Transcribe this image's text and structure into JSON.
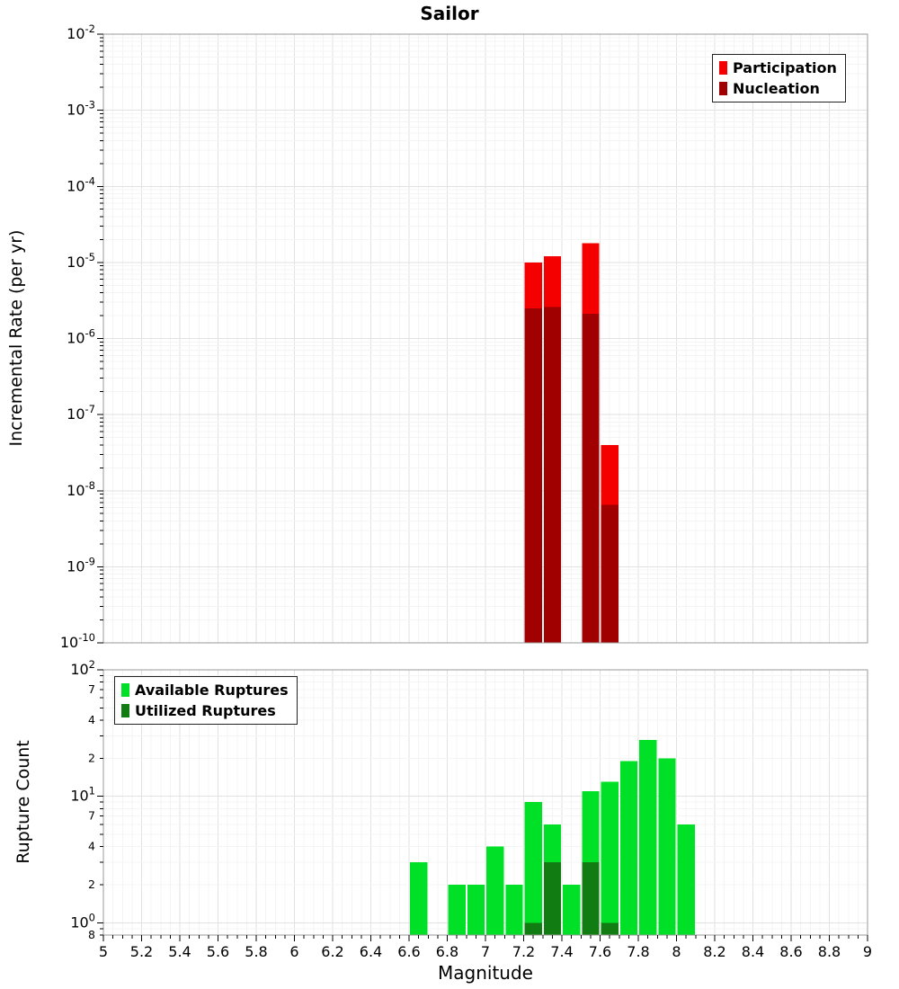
{
  "title": "Sailor",
  "xlabel": "Magnitude",
  "colors": {
    "grid_major": "#e2e2e2",
    "grid_minor": "#f4f4f4",
    "frame": "#9a9a9a",
    "tick": "#000000",
    "participation": "#f40000",
    "nucleation": "#a00000",
    "available": "#00e026",
    "utilized": "#117c11"
  },
  "legend_top": {
    "items": [
      {
        "label": "Participation",
        "color": "#f40000"
      },
      {
        "label": "Nucleation",
        "color": "#a00000"
      }
    ]
  },
  "legend_bottom": {
    "items": [
      {
        "label": "Available Ruptures",
        "color": "#00e026"
      },
      {
        "label": "Utilized Ruptures",
        "color": "#117c11"
      }
    ]
  },
  "chart_data": [
    {
      "type": "bar",
      "title": "Sailor",
      "ylabel": "Incremental Rate (per yr)",
      "xlabel": "",
      "yscale": "log",
      "ylim": [
        1e-10,
        0.01
      ],
      "xlim": [
        5,
        9
      ],
      "bin_width": 0.1,
      "grid": true,
      "legend_position": "top-right",
      "y_ticks": [
        {
          "v": 0.01,
          "l": "10^-2"
        },
        {
          "v": 0.001,
          "l": "10^-3"
        },
        {
          "v": 0.0001,
          "l": "10^-4"
        },
        {
          "v": 1e-05,
          "l": "10^-5"
        },
        {
          "v": 1e-06,
          "l": "10^-6"
        },
        {
          "v": 1e-07,
          "l": "10^-7"
        },
        {
          "v": 1e-08,
          "l": "10^-8"
        },
        {
          "v": 1e-09,
          "l": "10^-9"
        },
        {
          "v": 1e-10,
          "l": "10^-10"
        }
      ],
      "series": [
        {
          "name": "Participation",
          "color": "#f40000",
          "x": [
            7.25,
            7.35,
            7.55,
            7.65
          ],
          "values": [
            1e-05,
            1.2e-05,
            1.8e-05,
            4e-08
          ]
        },
        {
          "name": "Nucleation",
          "color": "#a00000",
          "x": [
            7.25,
            7.35,
            7.55,
            7.65
          ],
          "values": [
            2.5e-06,
            2.6e-06,
            2.1e-06,
            6.5e-09
          ]
        }
      ]
    },
    {
      "type": "bar",
      "title": "",
      "ylabel": "Rupture Count",
      "xlabel": "Magnitude",
      "yscale": "log",
      "ylim": [
        0.8,
        100
      ],
      "xlim": [
        5,
        9
      ],
      "bin_width": 0.1,
      "grid": true,
      "legend_position": "top-left",
      "y_ticks": [
        {
          "v": 100,
          "l": "10^2"
        },
        {
          "v": 70,
          "l": "7"
        },
        {
          "v": 40,
          "l": "4"
        },
        {
          "v": 20,
          "l": "2"
        },
        {
          "v": 10,
          "l": "10^1"
        },
        {
          "v": 7,
          "l": "7"
        },
        {
          "v": 4,
          "l": "4"
        },
        {
          "v": 2,
          "l": "2"
        },
        {
          "v": 1,
          "l": "10^0"
        },
        {
          "v": 0.8,
          "l": "8"
        }
      ],
      "x_ticks": [
        {
          "v": 5,
          "l": "5"
        },
        {
          "v": 5.2,
          "l": "5.2"
        },
        {
          "v": 5.4,
          "l": "5.4"
        },
        {
          "v": 5.6,
          "l": "5.6"
        },
        {
          "v": 5.8,
          "l": "5.8"
        },
        {
          "v": 6,
          "l": "6"
        },
        {
          "v": 6.2,
          "l": "6.2"
        },
        {
          "v": 6.4,
          "l": "6.4"
        },
        {
          "v": 6.6,
          "l": "6.6"
        },
        {
          "v": 6.8,
          "l": "6.8"
        },
        {
          "v": 7,
          "l": "7"
        },
        {
          "v": 7.2,
          "l": "7.2"
        },
        {
          "v": 7.4,
          "l": "7.4"
        },
        {
          "v": 7.6,
          "l": "7.6"
        },
        {
          "v": 7.8,
          "l": "7.8"
        },
        {
          "v": 8,
          "l": "8"
        },
        {
          "v": 8.2,
          "l": "8.2"
        },
        {
          "v": 8.4,
          "l": "8.4"
        },
        {
          "v": 8.6,
          "l": "8.6"
        },
        {
          "v": 8.8,
          "l": "8.8"
        },
        {
          "v": 9,
          "l": "9"
        }
      ],
      "series": [
        {
          "name": "Available Ruptures",
          "color": "#00e026",
          "x": [
            6.65,
            6.85,
            6.95,
            7.05,
            7.15,
            7.25,
            7.35,
            7.45,
            7.55,
            7.65,
            7.75,
            7.85,
            7.95,
            8.05
          ],
          "values": [
            3,
            2,
            2,
            4,
            2,
            9,
            6,
            2,
            11,
            13,
            19,
            28,
            20,
            6
          ]
        },
        {
          "name": "Utilized Ruptures",
          "color": "#117c11",
          "x": [
            7.25,
            7.35,
            7.55,
            7.65
          ],
          "values": [
            1,
            3,
            3,
            1
          ]
        }
      ]
    }
  ]
}
